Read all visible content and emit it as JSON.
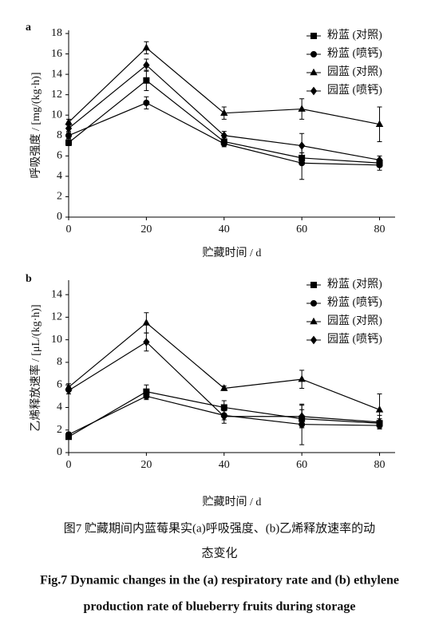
{
  "chart_data": [
    {
      "type": "line",
      "panel": "a",
      "ylabel": "呼吸强度 / [mg/(kg·h)]",
      "xlabel": "贮藏时间 / d",
      "x": [
        0,
        20,
        40,
        60,
        80
      ],
      "xlim": [
        0,
        84
      ],
      "xticks": [
        0,
        20,
        40,
        60,
        80
      ],
      "ylim": [
        0,
        18
      ],
      "yticks": [
        0,
        2,
        4,
        6,
        8,
        10,
        12,
        14,
        16,
        18
      ],
      "legend": "upper right",
      "color": "#000000",
      "series": [
        {
          "name": "粉蓝 (对照)",
          "marker": "square",
          "values": [
            7.3,
            13.4,
            7.4,
            5.8,
            5.3
          ],
          "errors": [
            0.3,
            1.0,
            0.4,
            0.5,
            0.4
          ]
        },
        {
          "name": "粉蓝 (喷钙)",
          "marker": "circle",
          "values": [
            8.0,
            11.2,
            7.2,
            5.3,
            5.1
          ],
          "errors": [
            0.3,
            0.6,
            0.3,
            1.6,
            0.5
          ]
        },
        {
          "name": "园蓝 (对照)",
          "marker": "triangle",
          "values": [
            9.3,
            16.6,
            10.2,
            10.6,
            9.1
          ],
          "errors": [
            0.3,
            0.6,
            0.6,
            1.0,
            1.7
          ]
        },
        {
          "name": "园蓝 (喷钙)",
          "marker": "diamond",
          "values": [
            8.7,
            14.9,
            8.0,
            7.0,
            5.6
          ],
          "errors": [
            0.3,
            0.6,
            0.4,
            1.2,
            0.4
          ]
        }
      ]
    },
    {
      "type": "line",
      "panel": "b",
      "ylabel": "乙烯释放速率 / [μL/(kg·h)]",
      "xlabel": "贮藏时间 / d",
      "x": [
        0,
        20,
        40,
        60,
        80
      ],
      "xlim": [
        0,
        84
      ],
      "xticks": [
        0,
        20,
        40,
        60,
        80
      ],
      "ylim": [
        0,
        15
      ],
      "yticks": [
        0,
        2,
        4,
        6,
        8,
        10,
        12,
        14
      ],
      "legend": "upper right",
      "color": "#000000",
      "series": [
        {
          "name": "粉蓝 (对照)",
          "marker": "square",
          "values": [
            1.4,
            5.4,
            4.0,
            3.0,
            2.6
          ],
          "errors": [
            0.2,
            0.6,
            0.6,
            0.8,
            0.4
          ]
        },
        {
          "name": "粉蓝 (喷钙)",
          "marker": "circle",
          "values": [
            1.6,
            5.0,
            3.3,
            2.5,
            2.4
          ],
          "errors": [
            0.2,
            0.3,
            0.4,
            1.8,
            0.3
          ]
        },
        {
          "name": "园蓝 (对照)",
          "marker": "triangle",
          "values": [
            5.8,
            11.5,
            5.7,
            6.5,
            3.8
          ],
          "errors": [
            0.3,
            0.9,
            0.2,
            0.8,
            1.4
          ]
        },
        {
          "name": "园蓝 (喷钙)",
          "marker": "diamond",
          "values": [
            5.5,
            9.8,
            3.2,
            3.2,
            2.7
          ],
          "errors": [
            0.3,
            0.8,
            0.6,
            1.0,
            0.6
          ]
        }
      ]
    }
  ],
  "caption": {
    "zh": [
      "图7 贮藏期间内蓝莓果实(a)呼吸强度、(b)乙烯释放速率的动",
      "态变化"
    ],
    "en": [
      "Fig.7 Dynamic changes in the (a) respiratory rate and (b) ethylene",
      "production rate of blueberry fruits during storage"
    ]
  }
}
